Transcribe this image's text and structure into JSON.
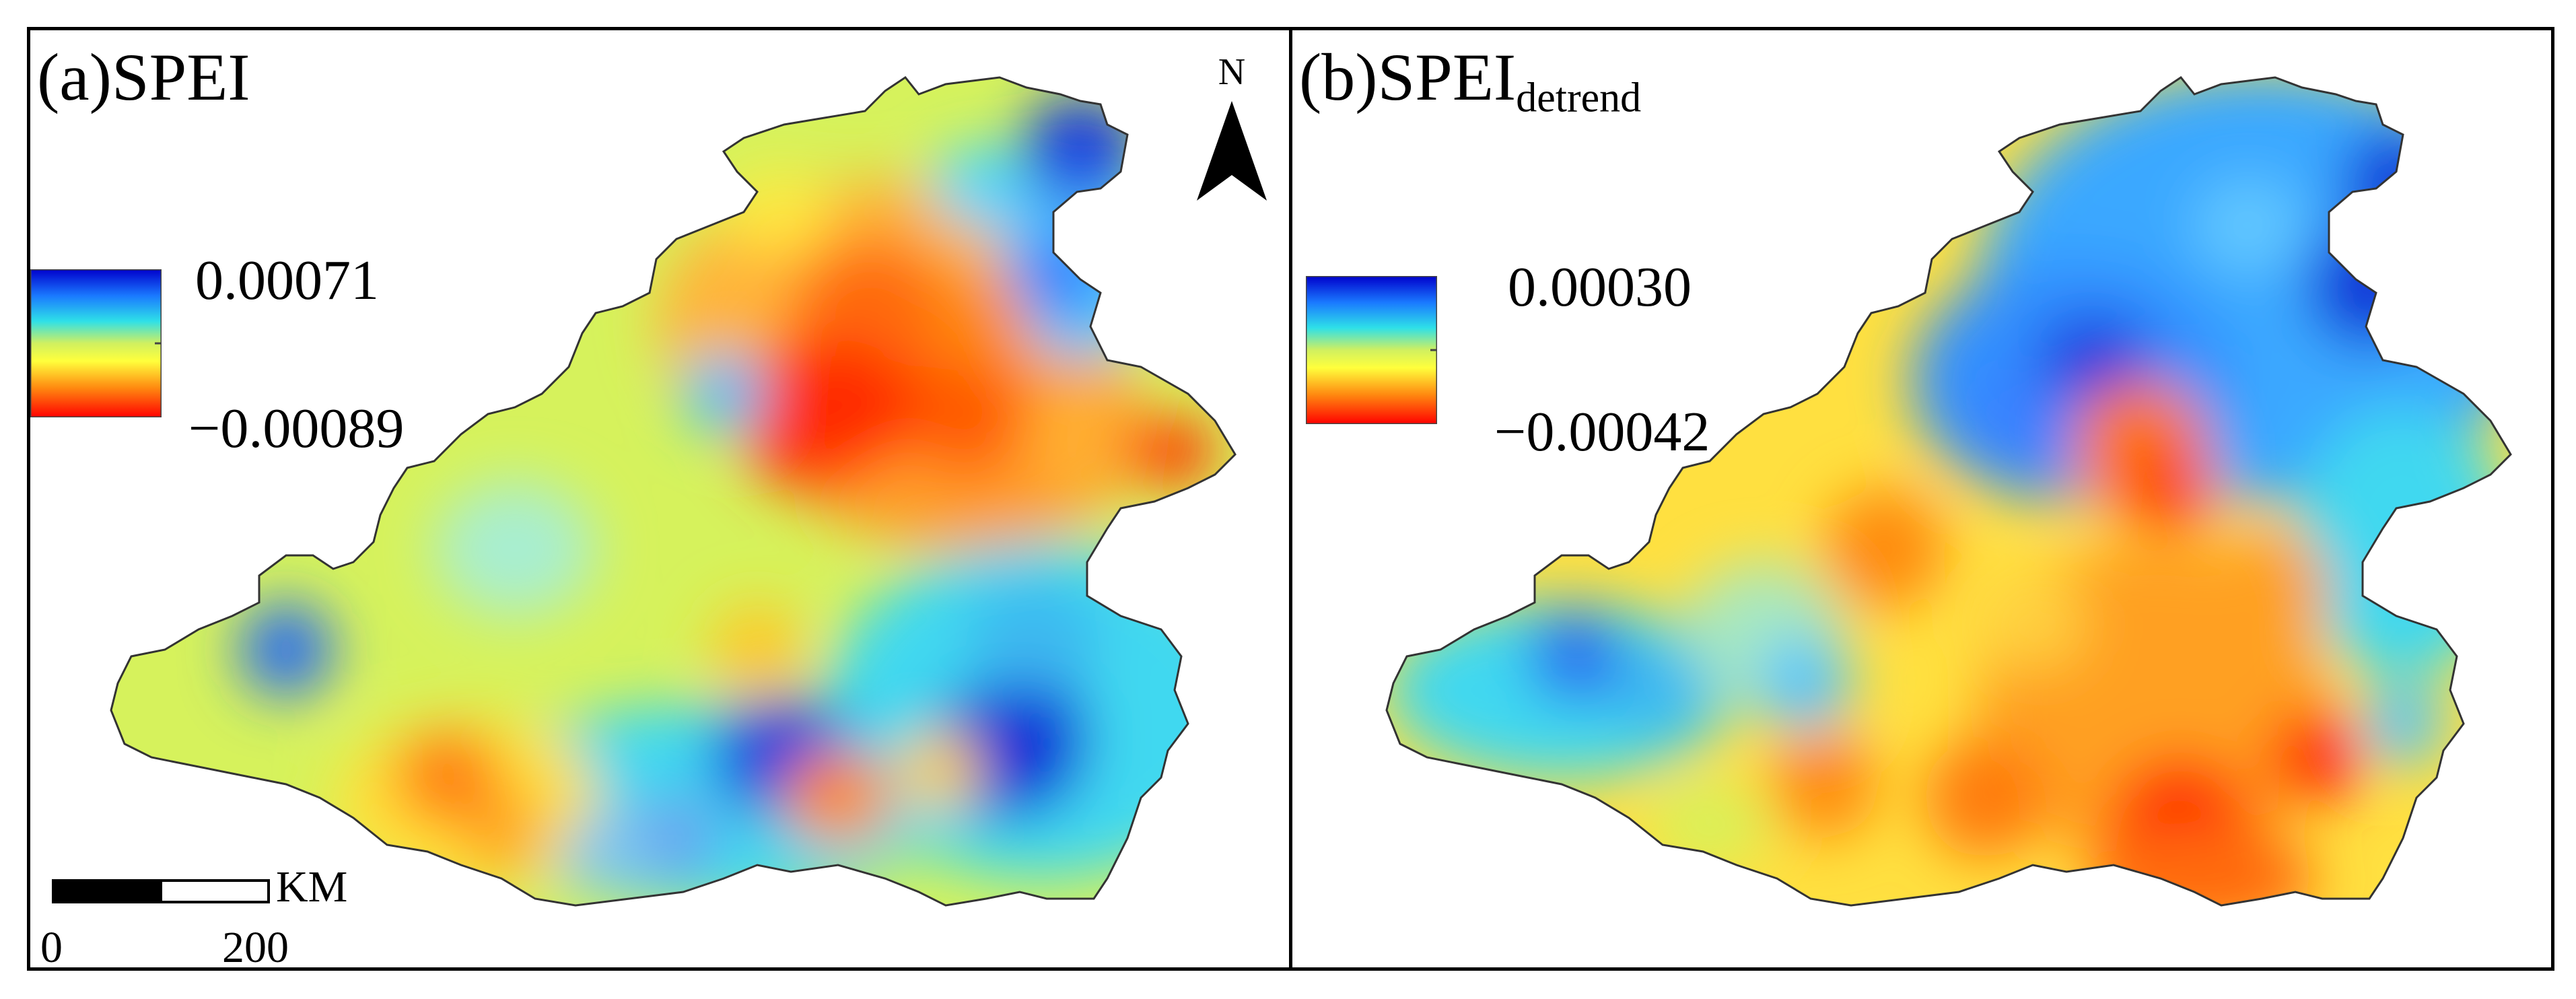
{
  "panel_a": {
    "title": "(a)SPEI",
    "legend": {
      "max": "0.00071",
      "min": "−0.00089"
    },
    "north_label": "N",
    "scale": {
      "unit": "KM",
      "start": "0",
      "end": "200"
    }
  },
  "panel_b": {
    "title_main": "(b)SPEI",
    "title_sub": "detrend",
    "legend": {
      "max": "0.00030",
      "min": "−0.00042"
    }
  },
  "colormap": [
    "#0000cc",
    "#0b4fe6",
    "#17a8ff",
    "#37e0e0",
    "#c8f060",
    "#ffff3c",
    "#ffc21e",
    "#ff7a0e",
    "#ff0000"
  ],
  "icons": [
    "north-arrow-icon",
    "scale-bar-icon"
  ]
}
